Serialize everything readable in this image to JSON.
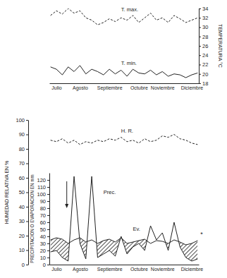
{
  "chart_data": [
    {
      "type": "line",
      "categories": [
        null,
        "Julio",
        null,
        null,
        null,
        "Agosto",
        null,
        null,
        null,
        null,
        "Septiembre",
        null,
        null,
        null,
        null,
        "Octubre",
        null,
        null,
        null,
        "Noviembre",
        null,
        null,
        null,
        null,
        "Diciembre",
        null
      ],
      "ylabel": "TEMPERATURA °C",
      "ylim": [
        18,
        34
      ],
      "yticks": [
        18,
        20,
        22,
        24,
        26,
        28,
        30,
        32,
        34
      ],
      "series": [
        {
          "name": "T. max.",
          "color": "#222222",
          "line_style": "dashed",
          "values": [
            32.5,
            33.5,
            32.8,
            34,
            33,
            33.5,
            32,
            31.5,
            30.5,
            31,
            31.8,
            31.2,
            32,
            31.5,
            32.5,
            31,
            32,
            33,
            31.5,
            32,
            31,
            32.5,
            31.8,
            31,
            31.5,
            32
          ]
        },
        {
          "name": "T. min.",
          "color": "#222222",
          "line_style": "solid",
          "values": [
            21.5,
            21,
            19.8,
            21.5,
            20.5,
            21.8,
            20,
            21,
            20.5,
            19.8,
            21,
            20,
            20.8,
            19.5,
            21,
            20.2,
            20,
            20.8,
            19.8,
            20.5,
            19.5,
            20,
            19.8,
            19.2,
            19.8,
            20.2
          ]
        }
      ]
    },
    {
      "type": "line",
      "categories": [
        null,
        "Julio",
        null,
        null,
        null,
        "Agosto",
        null,
        null,
        null,
        null,
        "Septiembre",
        null,
        null,
        null,
        null,
        "Octubre",
        null,
        null,
        null,
        "Noviembre",
        null,
        null,
        null,
        null,
        "Diciembre",
        null
      ],
      "ylabel": "HUMEDAD RELATIVA EN %",
      "ylim": [
        0,
        100
      ],
      "yticks": [
        0,
        10,
        20,
        30,
        40,
        50,
        60,
        70,
        80,
        90,
        100
      ],
      "y2label": "PRECIPITACION O EVAPORACION EN mm",
      "y2lim": [
        0,
        130
      ],
      "y2ticks": [
        0,
        10,
        20,
        30,
        40,
        50,
        60,
        70,
        80,
        90,
        100,
        110,
        120
      ],
      "annotations": [
        "*"
      ],
      "series": [
        {
          "name": "H. R.",
          "color": "#222222",
          "line_style": "dashed",
          "values": [
            86,
            85,
            87,
            84,
            86,
            83,
            85,
            84,
            86,
            85,
            87,
            86,
            88,
            85,
            86,
            84,
            87,
            85,
            86,
            89,
            88,
            90,
            87,
            86,
            84,
            83
          ]
        },
        {
          "name": "Prec.",
          "color": "#222222",
          "line_style": "solid",
          "axis": "y2",
          "values": [
            18,
            20,
            10,
            5,
            125,
            30,
            8,
            125,
            10,
            15,
            20,
            12,
            40,
            15,
            25,
            30,
            20,
            55,
            35,
            45,
            20,
            60,
            25,
            10,
            5,
            8
          ]
        },
        {
          "name": "Ev.",
          "color": "#222222",
          "line_style": "solid",
          "axis": "y2",
          "values": [
            35,
            38,
            36,
            30,
            35,
            38,
            32,
            35,
            30,
            34,
            36,
            32,
            38,
            30,
            32,
            34,
            36,
            30,
            34,
            33,
            30,
            35,
            32,
            28,
            30,
            34
          ]
        }
      ]
    }
  ]
}
